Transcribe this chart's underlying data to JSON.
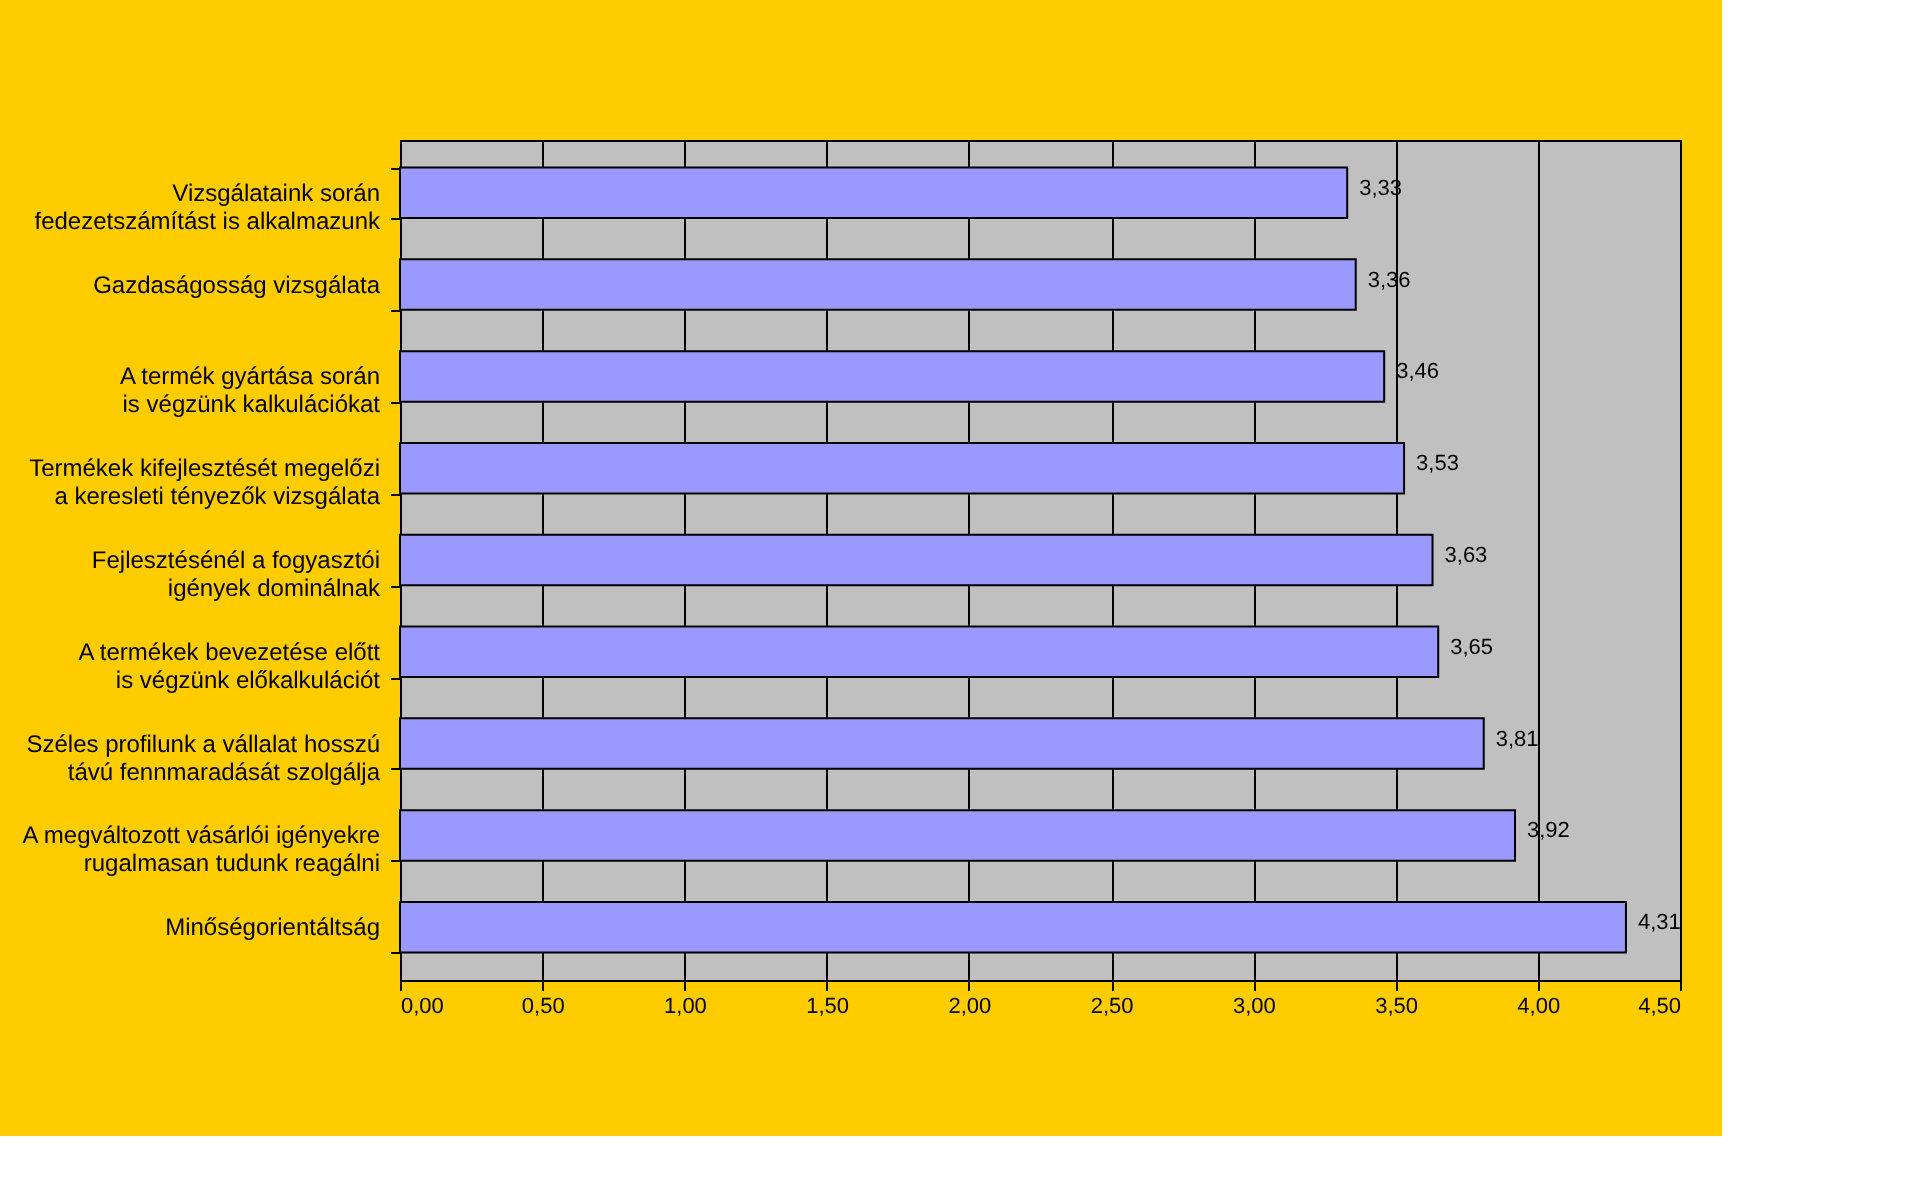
{
  "chart_data": {
    "type": "bar",
    "orientation": "horizontal",
    "categories": [
      "Vizsgálataink során fedezetszámítást is alkalmazunk",
      "Gazdaságosság vizsgálata",
      "A termék gyártása során is végzünk kalkulációkat",
      "Termékek kifejlesztését megelőzi a keresleti tényezők vizsgálata",
      "Fejlesztésénél a fogyasztói igények dominálnak",
      "A termékek bevezetése előtt is végzünk előkalkulációt",
      "Széles profilunk a vállalat hosszú távú fennmaradását szolgálja",
      "A megváltozott vásárlói igényekre rugalmasan tudunk reagálni",
      "Minőségorientáltság"
    ],
    "values": [
      3.33,
      3.36,
      3.46,
      3.53,
      3.63,
      3.65,
      3.81,
      3.92,
      4.31
    ],
    "value_labels": [
      "3,33",
      "3,36",
      "3,46",
      "3,53",
      "3,63",
      "3,65",
      "3,81",
      "3,92",
      "4,31"
    ],
    "color": "#9999ff",
    "xlim": [
      0,
      4.5
    ],
    "xticks": [
      {
        "value": 0,
        "label": "0,00"
      },
      {
        "value": 0.5,
        "label": "0,50"
      },
      {
        "value": 1,
        "label": "1,00"
      },
      {
        "value": 1.5,
        "label": "1,50"
      },
      {
        "value": 2,
        "label": "2,00"
      },
      {
        "value": 2.5,
        "label": "2,50"
      },
      {
        "value": 3,
        "label": "3,00"
      },
      {
        "value": 3.5,
        "label": "3,50"
      },
      {
        "value": 4,
        "label": "4,00"
      },
      {
        "value": 4.5,
        "label": "4,50"
      }
    ],
    "grid": "x"
  }
}
